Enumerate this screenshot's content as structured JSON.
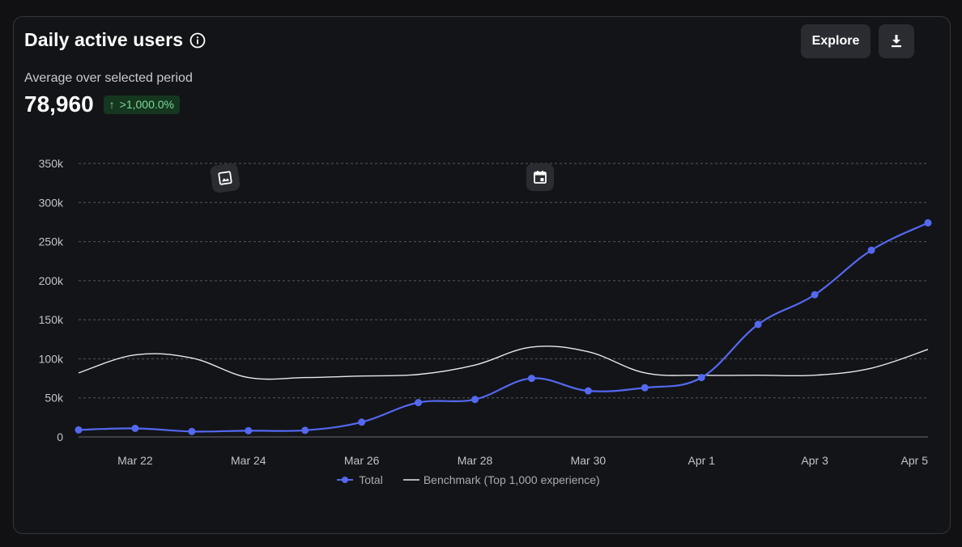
{
  "header": {
    "title": "Daily active users",
    "explore_label": "Explore"
  },
  "summary": {
    "subtitle": "Average over selected period",
    "value": "78,960",
    "change": ">1,000.0%"
  },
  "icons": {
    "info": "info-icon",
    "download": "download-icon",
    "image_marker": "image-icon",
    "calendar_marker": "calendar-icon"
  },
  "colors": {
    "total": "#5468f0",
    "benchmark": "#e8e8ea",
    "badge_text": "#7fd99a",
    "badge_bg": "#15361f"
  },
  "chart_data": {
    "type": "line",
    "x": [
      "Mar 21",
      "Mar 22",
      "Mar 23",
      "Mar 24",
      "Mar 25",
      "Mar 26",
      "Mar 27",
      "Mar 28",
      "Mar 29",
      "Mar 30",
      "Mar 31",
      "Apr 1",
      "Apr 2",
      "Apr 3",
      "Apr 4",
      "Apr 5"
    ],
    "x_tick_labels": [
      "Mar 22",
      "Mar 24",
      "Mar 26",
      "Mar 28",
      "Mar 30",
      "Apr 1",
      "Apr 3",
      "Apr 5"
    ],
    "y_ticks": [
      0,
      50000,
      100000,
      150000,
      200000,
      250000,
      300000,
      350000
    ],
    "y_tick_labels": [
      "0",
      "50k",
      "100k",
      "150k",
      "200k",
      "250k",
      "300k",
      "350k"
    ],
    "ylim": [
      0,
      350000
    ],
    "grid": true,
    "legend_position": "bottom-center",
    "series": [
      {
        "name": "Total",
        "markers": true,
        "values": [
          9000,
          11000,
          7000,
          8000,
          8500,
          19000,
          44000,
          48000,
          75000,
          59000,
          63000,
          76000,
          144000,
          182000,
          239000,
          274000
        ]
      },
      {
        "name": "Benchmark (Top 1,000 experience)",
        "markers": false,
        "values": [
          82000,
          105000,
          101000,
          76000,
          76000,
          78000,
          80000,
          92000,
          115000,
          109000,
          82000,
          79000,
          79000,
          79000,
          88000,
          112000
        ]
      }
    ]
  }
}
